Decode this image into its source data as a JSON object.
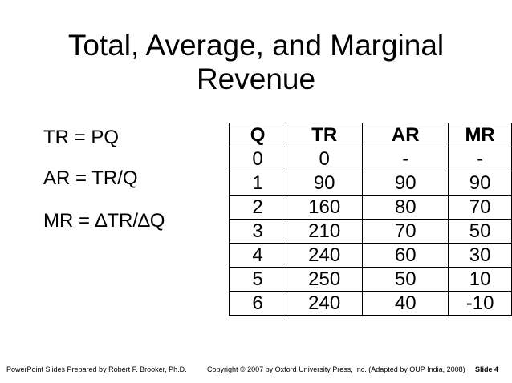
{
  "slide": {
    "title_line1": "Total, Average, and Marginal",
    "title_line2": "Revenue",
    "formulas": [
      "TR = PQ",
      "AR = TR/Q",
      "MR = ∆TR/∆Q"
    ]
  },
  "table": {
    "headers": [
      "Q",
      "TR",
      "AR",
      "MR"
    ],
    "rows": [
      [
        "0",
        "0",
        "-",
        "-"
      ],
      [
        "1",
        "90",
        "90",
        "90"
      ],
      [
        "2",
        "160",
        "80",
        "70"
      ],
      [
        "3",
        "210",
        "70",
        "50"
      ],
      [
        "4",
        "240",
        "60",
        "30"
      ],
      [
        "5",
        "250",
        "50",
        "10"
      ],
      [
        "6",
        "240",
        "40",
        "-10"
      ]
    ]
  },
  "footer": {
    "left": "PowerPoint Slides Prepared by Robert F. Brooker, Ph.D.",
    "center": "Copyright © 2007 by Oxford University Press, Inc. (Adapted by OUP India, 2008)",
    "right": "Slide 4"
  }
}
